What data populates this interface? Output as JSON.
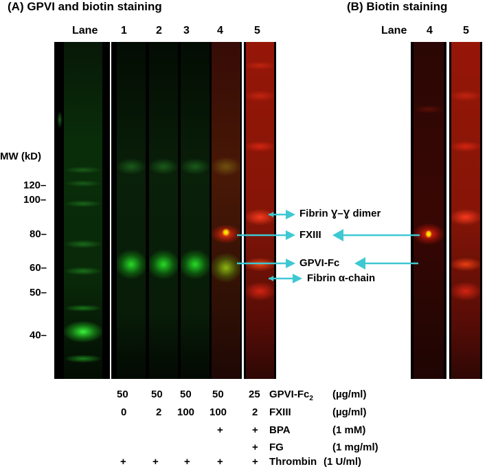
{
  "panels": {
    "a_title": "(A) GPVI and biotin staining",
    "b_title": "(B) Biotin staining"
  },
  "lanes": {
    "lane_label": "Lane",
    "a_numbers": [
      "1",
      "2",
      "3",
      "4",
      "5"
    ],
    "b_numbers": [
      "4",
      "5"
    ]
  },
  "mw": {
    "title": "MW (kD)",
    "markers": [
      "120–",
      "100–",
      "80–",
      "60–",
      "50–",
      "40–"
    ]
  },
  "annotations": {
    "fibrin_dimer": "Fibrin Ɣ–Ɣ dimer",
    "fxiii": "FXIII",
    "gpvi_fc": "GPVI-Fc",
    "fibrin_alpha": "Fibrin α-chain"
  },
  "conditions": {
    "rows": [
      {
        "values": [
          "50",
          "50",
          "50",
          "50",
          "25"
        ],
        "label": "GPVI-Fc",
        "label_sub": "2",
        "unit": "(µg/ml)"
      },
      {
        "values": [
          "0",
          "2",
          "100",
          "100",
          "2"
        ],
        "label": "FXIII",
        "label_sub": "",
        "unit": "(µg/ml)"
      },
      {
        "values": [
          "",
          "",
          "",
          "+",
          "+"
        ],
        "label": "BPA",
        "label_sub": "",
        "unit": "(1 mM)"
      },
      {
        "values": [
          "",
          "",
          "",
          "",
          "+"
        ],
        "label": "FG",
        "label_sub": "",
        "unit": "(1 mg/ml)"
      },
      {
        "values": [
          "+",
          "+",
          "+",
          "+",
          "+"
        ],
        "label": "Thrombin",
        "label_sub": "",
        "unit": "(1 U/ml)"
      }
    ]
  },
  "colors": {
    "arrow": "#3ec8d2",
    "green_stain": "#22d022",
    "red_stain": "#e02010"
  }
}
